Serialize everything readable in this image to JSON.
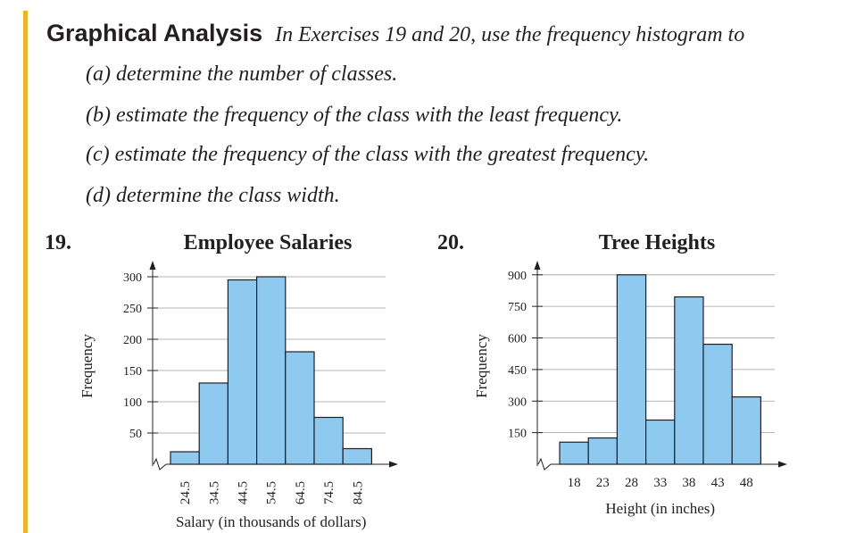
{
  "heading": {
    "label": "Graphical Analysis",
    "intro": "In Exercises 19 and 20, use the frequency histogram to"
  },
  "items": [
    "(a)  determine the number of classes.",
    "(b)  estimate the frequency of the class with the least frequency.",
    "(c)  estimate the frequency of the class with the greatest frequency.",
    "(d)  determine the class width."
  ],
  "colors": {
    "bar_fill": "#8ecaf0",
    "accent": "#f0b323",
    "axis": "#231f20",
    "grid": "#9d9d9d"
  },
  "chart_data": [
    {
      "number": "19.",
      "type": "bar",
      "title": "Employee Salaries",
      "xlabel": "Salary (in thousands of dollars)",
      "ylabel": "Frequency",
      "categories": [
        "24.5",
        "34.5",
        "44.5",
        "54.5",
        "64.5",
        "74.5",
        "84.5"
      ],
      "values": [
        20,
        130,
        295,
        300,
        180,
        75,
        25
      ],
      "yticks": [
        50,
        100,
        150,
        200,
        250,
        300
      ],
      "ylim": [
        0,
        320
      ],
      "x_tick_rotation": -90,
      "grid": true
    },
    {
      "number": "20.",
      "type": "bar",
      "title": "Tree Heights",
      "xlabel": "Height (in inches)",
      "ylabel": "Frequency",
      "categories": [
        "18",
        "23",
        "28",
        "33",
        "38",
        "43",
        "48"
      ],
      "values": [
        105,
        125,
        900,
        210,
        795,
        570,
        320
      ],
      "yticks": [
        150,
        300,
        450,
        600,
        750,
        900
      ],
      "ylim": [
        0,
        950
      ],
      "x_tick_rotation": 0,
      "grid": true
    }
  ]
}
